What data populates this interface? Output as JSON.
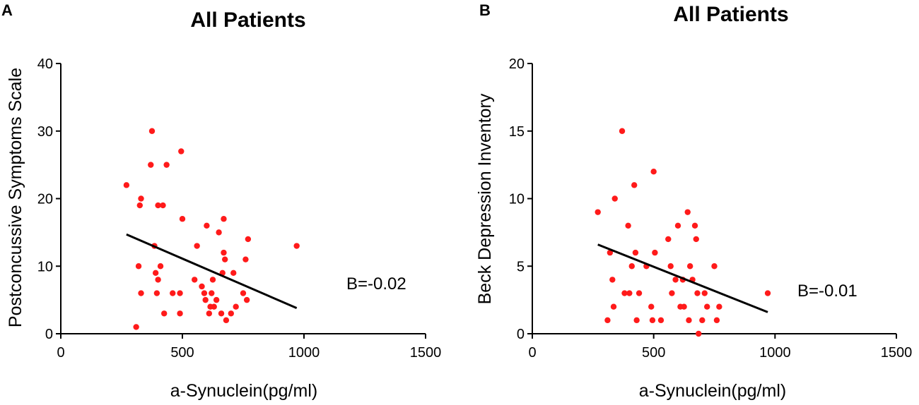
{
  "chart_data": [
    {
      "panel": "A",
      "type": "scatter",
      "title": "All Patients",
      "xlabel": "a-Synuclein(pg/ml)",
      "ylabel": "Postconcussive Symptoms Scale",
      "xlim": [
        0,
        1500
      ],
      "ylim": [
        0,
        40
      ],
      "xticks": [
        0,
        500,
        1000,
        1500
      ],
      "yticks": [
        0,
        10,
        20,
        30,
        40
      ],
      "annotation": "B=-0.02",
      "marker_color": "#ff1a1a",
      "regression": {
        "x": [
          270,
          970
        ],
        "y": [
          14.7,
          3.8
        ]
      },
      "points": [
        {
          "x": 270,
          "y": 22
        },
        {
          "x": 310,
          "y": 1
        },
        {
          "x": 320,
          "y": 10
        },
        {
          "x": 325,
          "y": 19
        },
        {
          "x": 330,
          "y": 20
        },
        {
          "x": 330,
          "y": 6
        },
        {
          "x": 370,
          "y": 25
        },
        {
          "x": 375,
          "y": 30
        },
        {
          "x": 385,
          "y": 13
        },
        {
          "x": 390,
          "y": 9
        },
        {
          "x": 395,
          "y": 6
        },
        {
          "x": 400,
          "y": 19
        },
        {
          "x": 400,
          "y": 8
        },
        {
          "x": 410,
          "y": 10
        },
        {
          "x": 420,
          "y": 19
        },
        {
          "x": 425,
          "y": 3
        },
        {
          "x": 435,
          "y": 25
        },
        {
          "x": 460,
          "y": 6
        },
        {
          "x": 490,
          "y": 3
        },
        {
          "x": 490,
          "y": 6
        },
        {
          "x": 495,
          "y": 27
        },
        {
          "x": 500,
          "y": 17
        },
        {
          "x": 550,
          "y": 8
        },
        {
          "x": 560,
          "y": 13
        },
        {
          "x": 580,
          "y": 7
        },
        {
          "x": 590,
          "y": 6
        },
        {
          "x": 595,
          "y": 5
        },
        {
          "x": 600,
          "y": 16
        },
        {
          "x": 610,
          "y": 3
        },
        {
          "x": 615,
          "y": 4
        },
        {
          "x": 620,
          "y": 6
        },
        {
          "x": 625,
          "y": 8
        },
        {
          "x": 630,
          "y": 4
        },
        {
          "x": 640,
          "y": 5
        },
        {
          "x": 650,
          "y": 15
        },
        {
          "x": 660,
          "y": 3
        },
        {
          "x": 665,
          "y": 9
        },
        {
          "x": 670,
          "y": 17
        },
        {
          "x": 670,
          "y": 12
        },
        {
          "x": 675,
          "y": 11
        },
        {
          "x": 680,
          "y": 2
        },
        {
          "x": 700,
          "y": 3
        },
        {
          "x": 710,
          "y": 9
        },
        {
          "x": 720,
          "y": 4
        },
        {
          "x": 750,
          "y": 6
        },
        {
          "x": 760,
          "y": 11
        },
        {
          "x": 765,
          "y": 5
        },
        {
          "x": 770,
          "y": 14
        },
        {
          "x": 970,
          "y": 13
        }
      ]
    },
    {
      "panel": "B",
      "type": "scatter",
      "title": "All Patients",
      "xlabel": "a-Synuclein(pg/ml)",
      "ylabel": "Beck Depression Inventory",
      "xlim": [
        0,
        1500
      ],
      "ylim": [
        0,
        20
      ],
      "xticks": [
        0,
        500,
        1000,
        1500
      ],
      "yticks": [
        0,
        5,
        10,
        15,
        20
      ],
      "annotation": "B=-0.01",
      "marker_color": "#ff1a1a",
      "regression": {
        "x": [
          270,
          970
        ],
        "y": [
          6.6,
          1.6
        ]
      },
      "points": [
        {
          "x": 270,
          "y": 9
        },
        {
          "x": 310,
          "y": 1
        },
        {
          "x": 320,
          "y": 6
        },
        {
          "x": 330,
          "y": 4
        },
        {
          "x": 335,
          "y": 2
        },
        {
          "x": 340,
          "y": 10
        },
        {
          "x": 370,
          "y": 15
        },
        {
          "x": 380,
          "y": 3
        },
        {
          "x": 395,
          "y": 8
        },
        {
          "x": 400,
          "y": 3
        },
        {
          "x": 410,
          "y": 5
        },
        {
          "x": 420,
          "y": 11
        },
        {
          "x": 425,
          "y": 6
        },
        {
          "x": 430,
          "y": 1
        },
        {
          "x": 440,
          "y": 3
        },
        {
          "x": 470,
          "y": 5
        },
        {
          "x": 490,
          "y": 2
        },
        {
          "x": 495,
          "y": 1
        },
        {
          "x": 500,
          "y": 12
        },
        {
          "x": 505,
          "y": 6
        },
        {
          "x": 530,
          "y": 1
        },
        {
          "x": 560,
          "y": 7
        },
        {
          "x": 570,
          "y": 5
        },
        {
          "x": 575,
          "y": 3
        },
        {
          "x": 590,
          "y": 4
        },
        {
          "x": 600,
          "y": 8
        },
        {
          "x": 610,
          "y": 2
        },
        {
          "x": 620,
          "y": 4
        },
        {
          "x": 625,
          "y": 2
        },
        {
          "x": 640,
          "y": 9
        },
        {
          "x": 645,
          "y": 1
        },
        {
          "x": 650,
          "y": 5
        },
        {
          "x": 660,
          "y": 4
        },
        {
          "x": 670,
          "y": 8
        },
        {
          "x": 675,
          "y": 7
        },
        {
          "x": 680,
          "y": 3
        },
        {
          "x": 685,
          "y": 0
        },
        {
          "x": 700,
          "y": 1
        },
        {
          "x": 710,
          "y": 3
        },
        {
          "x": 720,
          "y": 2
        },
        {
          "x": 750,
          "y": 5
        },
        {
          "x": 760,
          "y": 1
        },
        {
          "x": 770,
          "y": 2
        },
        {
          "x": 970,
          "y": 3
        }
      ]
    }
  ]
}
